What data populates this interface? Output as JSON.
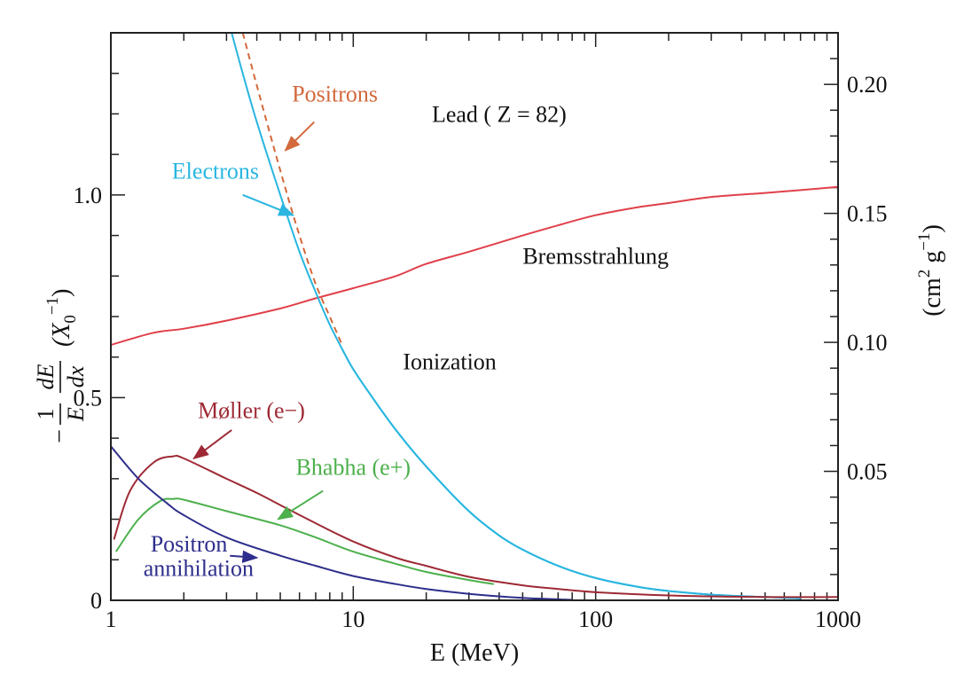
{
  "chart_data": {
    "type": "line",
    "title": "Lead  ( Z = 82)",
    "xlabel": "E  (MeV)",
    "ylabel_left": {
      "minus": "−",
      "frac1_num": "1",
      "frac1_den": "E",
      "frac2_num": "dE",
      "frac2_den": "dx",
      "unit": "(X",
      "unit_sub": "0",
      "unit_sup": "−1",
      "unit_close": ")"
    },
    "ylabel_right": {
      "text1": "(cm",
      "sup1": "2",
      "text2": " g",
      "sup2": "−1",
      "text3": ")"
    },
    "x_scale": "log",
    "xlim": [
      1,
      1000
    ],
    "ylim_left": [
      0,
      1.4
    ],
    "ylim_right": [
      0,
      0.22
    ],
    "x_ticks": [
      {
        "value": 1,
        "label": "1"
      },
      {
        "value": 10,
        "label": "10"
      },
      {
        "value": 100,
        "label": "100"
      },
      {
        "value": 1000,
        "label": "1000"
      }
    ],
    "y_ticks_left": [
      {
        "value": 0,
        "label": "0"
      },
      {
        "value": 0.5,
        "label": "0.5"
      },
      {
        "value": 1.0,
        "label": "1.0"
      }
    ],
    "y_ticks_right": [
      {
        "value": 0.05,
        "label": "0.05"
      },
      {
        "value": 0.1,
        "label": "0.10"
      },
      {
        "value": 0.15,
        "label": "0.15"
      },
      {
        "value": 0.2,
        "label": "0.20"
      }
    ],
    "series": [
      {
        "name": "Bremsstrahlung",
        "color": "#e0404a",
        "dashed": false,
        "x": [
          1,
          1.5,
          2,
          3,
          5,
          7,
          10,
          15,
          20,
          30,
          50,
          70,
          100,
          150,
          200,
          300,
          500,
          700,
          1000
        ],
        "y": [
          0.63,
          0.66,
          0.67,
          0.69,
          0.72,
          0.745,
          0.77,
          0.8,
          0.83,
          0.86,
          0.9,
          0.925,
          0.95,
          0.97,
          0.98,
          0.995,
          1.005,
          1.012,
          1.02
        ]
      },
      {
        "name": "Electrons",
        "color": "#29b6e0",
        "dashed": false,
        "x": [
          3.15,
          3.5,
          4,
          5,
          6,
          7,
          8,
          9,
          10,
          12,
          15,
          20,
          30,
          40,
          50,
          70,
          100,
          150,
          200,
          300,
          500,
          700
        ],
        "y": [
          1.4,
          1.3,
          1.18,
          1.0,
          0.86,
          0.76,
          0.68,
          0.62,
          0.57,
          0.5,
          0.42,
          0.33,
          0.22,
          0.16,
          0.125,
          0.085,
          0.055,
          0.033,
          0.023,
          0.014,
          0.008,
          0.005
        ]
      },
      {
        "name": "Positrons",
        "color": "#d2693c",
        "dashed": true,
        "x": [
          3.5,
          4,
          5,
          6,
          7,
          8,
          9
        ],
        "y": [
          1.4,
          1.27,
          1.06,
          0.9,
          0.78,
          0.7,
          0.63
        ]
      },
      {
        "name": "Ionization",
        "color": "#29b6e0",
        "dashed": false,
        "x": [
          9,
          10,
          12,
          15,
          20,
          30,
          40,
          50,
          70,
          100,
          150,
          200,
          300,
          500,
          700
        ],
        "y": [
          0.62,
          0.57,
          0.5,
          0.42,
          0.33,
          0.22,
          0.16,
          0.125,
          0.085,
          0.055,
          0.033,
          0.023,
          0.014,
          0.008,
          0.005
        ]
      },
      {
        "name": "Møller (e−)",
        "color": "#9e2a35",
        "dashed": false,
        "x": [
          1.03,
          1.2,
          1.5,
          1.8,
          2,
          3,
          4,
          5,
          7,
          10,
          15,
          20,
          30,
          50,
          70,
          100,
          200,
          500,
          1000
        ],
        "y": [
          0.15,
          0.27,
          0.34,
          0.355,
          0.35,
          0.3,
          0.265,
          0.235,
          0.19,
          0.145,
          0.105,
          0.085,
          0.058,
          0.037,
          0.028,
          0.02,
          0.012,
          0.008,
          0.008
        ]
      },
      {
        "name": "Bhabha (e+)",
        "color": "#4cb04c",
        "dashed": false,
        "x": [
          1.05,
          1.3,
          1.6,
          1.8,
          2,
          3,
          5,
          7,
          10,
          15,
          20,
          30,
          38
        ],
        "y": [
          0.12,
          0.2,
          0.245,
          0.25,
          0.248,
          0.22,
          0.185,
          0.155,
          0.12,
          0.09,
          0.07,
          0.05,
          0.04
        ]
      },
      {
        "name": "Positron annihilation",
        "color": "#2e2e8c",
        "dashed": false,
        "x": [
          1,
          1.3,
          1.7,
          2,
          3,
          5,
          7,
          10,
          15,
          20,
          30,
          50,
          80
        ],
        "y": [
          0.38,
          0.3,
          0.24,
          0.21,
          0.155,
          0.11,
          0.085,
          0.06,
          0.04,
          0.028,
          0.016,
          0.006,
          0.001
        ]
      }
    ],
    "annotations": [
      {
        "text": "Positrons",
        "color": "#d2693c",
        "at": [
          8.4,
          1.23
        ],
        "anchor": "middle",
        "arrow_from": [
          6.9,
          1.18
        ],
        "arrow_to": [
          5.25,
          1.11
        ]
      },
      {
        "text": "Electrons",
        "color": "#29b6e0",
        "at": [
          2.7,
          1.04
        ],
        "anchor": "middle",
        "arrow_from": [
          3.5,
          1.0
        ],
        "arrow_to": [
          5.65,
          0.95
        ]
      },
      {
        "text": "Lead  ( Z = 82)",
        "color": "#111111",
        "at": [
          40,
          1.18
        ],
        "anchor": "middle"
      },
      {
        "text": "Bremsstrahlung",
        "color": "#111111",
        "at": [
          100,
          0.83
        ],
        "anchor": "middle"
      },
      {
        "text": "Ionization",
        "color": "#111111",
        "at": [
          25,
          0.57
        ],
        "anchor": "middle"
      },
      {
        "text": "Møller (e−)",
        "color": "#9e2a35",
        "at": [
          3.8,
          0.45
        ],
        "anchor": "middle",
        "arrow_from": [
          3.15,
          0.42
        ],
        "arrow_to": [
          2.2,
          0.35
        ]
      },
      {
        "text": "Bhabha (e+)",
        "color": "#4cb04c",
        "at": [
          10,
          0.31
        ],
        "anchor": "middle",
        "arrow_from": [
          7.5,
          0.27
        ],
        "arrow_to": [
          4.9,
          0.2
        ]
      },
      {
        "text": "Positron",
        "color": "#2e2e8c",
        "at": [
          2.1,
          0.12
        ],
        "anchor": "middle",
        "arrow_from": [
          3.1,
          0.11
        ],
        "arrow_to": [
          4.0,
          0.105
        ]
      },
      {
        "text": "annihilation",
        "color": "#2e2e8c",
        "at": [
          2.3,
          0.06
        ],
        "anchor": "middle"
      }
    ]
  }
}
